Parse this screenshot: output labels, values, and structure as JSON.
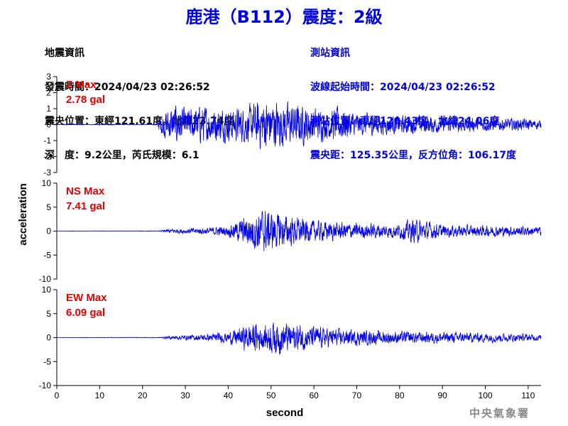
{
  "header": {
    "title": "鹿港（B112）震度：2級"
  },
  "quake_info": {
    "heading": "地震資訊",
    "origin_time": "發震時間：2024/04/23 02:26:52",
    "epicenter": "震央位置：東經121.61度，北緯23.74度",
    "depth_magnitude": "深　度：9.2公里，芮氏規模：6.1"
  },
  "station_info": {
    "heading": "測站資訊",
    "wave_start": "波線起始時間：2024/04/23 02:26:52",
    "location": "測站位置：東經120.43度，北緯24.06度",
    "distance": "震央距：125.35公里，反方位角：106.17度"
  },
  "watermark": "中央氣象署",
  "colors": {
    "trace": "#0000ee",
    "title": "#0000dd",
    "max_label": "#e00000"
  },
  "chart_data": {
    "type": "line",
    "xlabel": "second",
    "ylabel": "acceleration",
    "xlim": [
      0,
      113
    ],
    "x_ticks": [
      0,
      10,
      20,
      30,
      40,
      50,
      60,
      70,
      80,
      90,
      100,
      110
    ],
    "panels": [
      {
        "name": "Z",
        "max_label": "Z Max",
        "max_value": "2.78 gal",
        "ylim": [
          -3,
          3
        ],
        "y_ticks": [
          3,
          2,
          1,
          0,
          -1,
          -2,
          -3
        ],
        "envelope": {
          "x": [
            0,
            23,
            24,
            25,
            28,
            30,
            33,
            36,
            40,
            45,
            48,
            52,
            56,
            60,
            63,
            66,
            67,
            70,
            75,
            80,
            85,
            90,
            100,
            110,
            113
          ],
          "amp": [
            0.02,
            0.03,
            0.6,
            1.2,
            1.8,
            1.3,
            1.6,
            1.5,
            1.4,
            1.6,
            2.3,
            2.0,
            1.8,
            1.5,
            1.2,
            1.6,
            1.4,
            1.0,
            0.9,
            0.8,
            0.8,
            0.7,
            0.6,
            0.5,
            0.4
          ]
        }
      },
      {
        "name": "NS",
        "max_label": "NS Max",
        "max_value": "7.41 gal",
        "ylim": [
          -10,
          10
        ],
        "y_ticks": [
          10,
          5,
          0,
          -5,
          -10
        ],
        "envelope": {
          "x": [
            0,
            24,
            26,
            30,
            35,
            40,
            43,
            46,
            48,
            52,
            56,
            60,
            65,
            70,
            80,
            83,
            90,
            100,
            110,
            113
          ],
          "amp": [
            0.05,
            0.1,
            0.6,
            0.8,
            1.0,
            1.6,
            3.5,
            5.5,
            6.5,
            5.0,
            4.0,
            3.0,
            2.6,
            2.3,
            2.0,
            3.6,
            1.8,
            1.6,
            1.4,
            1.2
          ]
        }
      },
      {
        "name": "EW",
        "max_label": "EW Max",
        "max_value": "6.09 gal",
        "ylim": [
          -10,
          10
        ],
        "y_ticks": [
          10,
          5,
          0,
          -5,
          -10
        ],
        "envelope": {
          "x": [
            0,
            24,
            26,
            30,
            35,
            40,
            43,
            46,
            48,
            51,
            55,
            60,
            65,
            70,
            80,
            90,
            100,
            110,
            113
          ],
          "amp": [
            0.05,
            0.1,
            0.5,
            0.7,
            1.0,
            1.6,
            3.0,
            4.5,
            3.5,
            5.0,
            4.0,
            3.2,
            2.5,
            2.2,
            1.8,
            1.6,
            1.4,
            1.0,
            0.9
          ]
        }
      }
    ]
  }
}
